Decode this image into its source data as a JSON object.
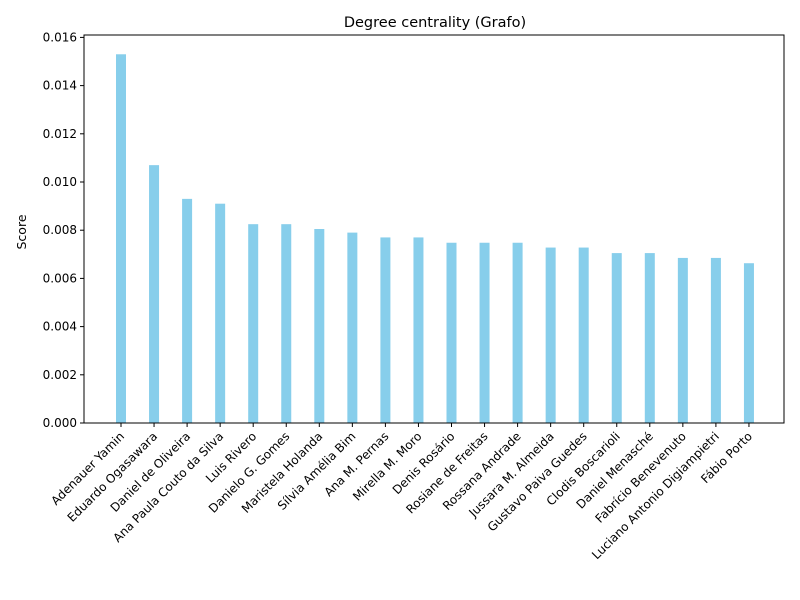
{
  "chart_data": {
    "type": "bar",
    "title": "Degree centrality (Grafo)",
    "xlabel": "",
    "ylabel": "Score",
    "ylim": [
      0,
      0.0161
    ],
    "yticks": [
      "0.000",
      "0.002",
      "0.004",
      "0.006",
      "0.008",
      "0.010",
      "0.012",
      "0.014",
      "0.016"
    ],
    "grid": false,
    "legend": "none",
    "bar_color": "#87ceeb",
    "categories": [
      "Adenauer Yamin",
      "Eduardo Ogasawara",
      "Daniel de Oliveira",
      "Ana Paula Couto da Silva",
      "Luis Rivero",
      "Danielo G. Gomes",
      "Maristela Holanda",
      "Sílvia Amélia Bim",
      "Ana M. Pernas",
      "Mirella M. Moro",
      "Denis Rosário",
      "Rosiane de Freitas",
      "Rossana Andrade",
      "Jussara M. Almeida",
      "Gustavo Paiva Guedes",
      "Clodis Boscarioli",
      "Daniel Menasché",
      "Fabrício Benevenuto",
      "Luciano Antonio Digiampietri",
      "Fábio Porto"
    ],
    "values": [
      0.0153,
      0.0107,
      0.0093,
      0.0091,
      0.00825,
      0.00825,
      0.00805,
      0.0079,
      0.0077,
      0.0077,
      0.00748,
      0.00748,
      0.00748,
      0.00728,
      0.00728,
      0.00705,
      0.00705,
      0.00685,
      0.00685,
      0.00663
    ]
  }
}
